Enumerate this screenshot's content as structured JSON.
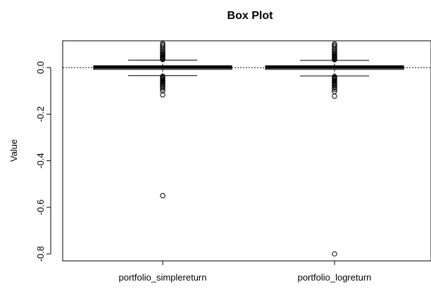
{
  "chart_data": {
    "type": "box",
    "title": "Box Plot",
    "xlabel": "",
    "ylabel": "Value",
    "ylim": [
      -0.83,
      0.115
    ],
    "yticks": [
      0.0,
      -0.2,
      -0.4,
      -0.6,
      -0.8
    ],
    "ytick_labels": [
      "0.0",
      "-0.2",
      "-0.4",
      "-0.6",
      "-0.8"
    ],
    "reference_line": 0.0,
    "categories": [
      "portfolio_simplereturn",
      "portfolio_logreturn"
    ],
    "boxes": [
      {
        "name": "portfolio_simplereturn",
        "q1": -0.008,
        "median": 0.001,
        "q3": 0.008,
        "whisker_low": -0.035,
        "whisker_high": 0.032,
        "outliers_high": [
          0.035,
          0.038,
          0.042,
          0.045,
          0.048,
          0.052,
          0.056,
          0.06,
          0.065,
          0.07,
          0.078,
          0.085,
          0.092,
          0.098,
          0.103
        ],
        "outliers_low": [
          -0.038,
          -0.042,
          -0.046,
          -0.05,
          -0.054,
          -0.058,
          -0.062,
          -0.066,
          -0.07,
          -0.075,
          -0.08,
          -0.085,
          -0.092,
          -0.1,
          -0.117,
          -0.55
        ]
      },
      {
        "name": "portfolio_logreturn",
        "q1": -0.008,
        "median": 0.001,
        "q3": 0.008,
        "whisker_low": -0.036,
        "whisker_high": 0.031,
        "outliers_high": [
          0.034,
          0.037,
          0.041,
          0.044,
          0.047,
          0.051,
          0.055,
          0.059,
          0.064,
          0.069,
          0.076,
          0.083,
          0.09,
          0.096,
          0.101
        ],
        "outliers_low": [
          -0.039,
          -0.043,
          -0.047,
          -0.051,
          -0.055,
          -0.059,
          -0.063,
          -0.067,
          -0.071,
          -0.076,
          -0.081,
          -0.087,
          -0.094,
          -0.103,
          -0.123,
          -0.8
        ]
      }
    ]
  }
}
